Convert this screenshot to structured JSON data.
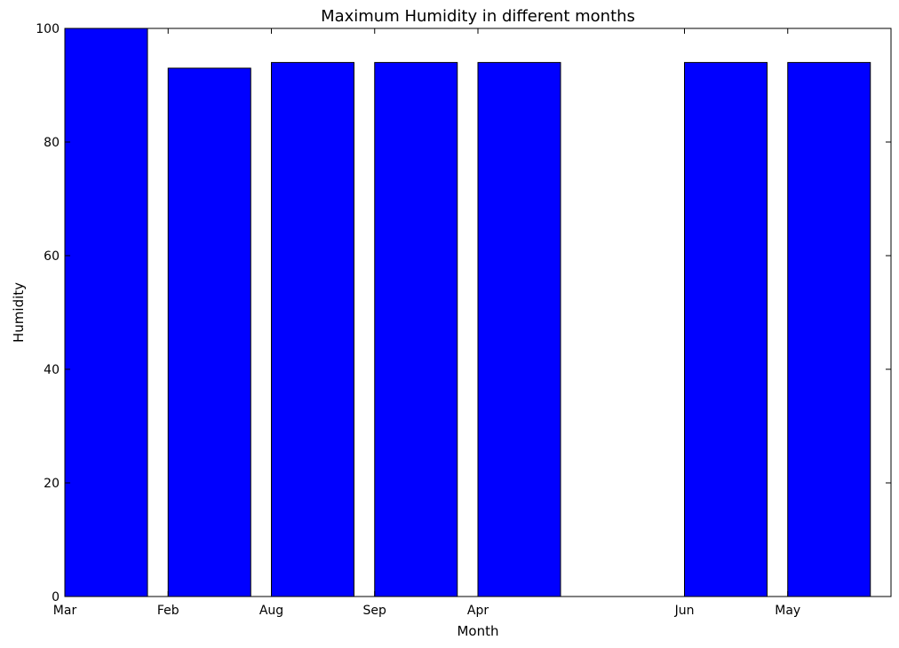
{
  "chart_data": {
    "type": "bar",
    "title": "Maximum Humidity in different months",
    "xlabel": "Month",
    "ylabel": "Humidity",
    "ylim": [
      0,
      100
    ],
    "yticks": [
      0,
      20,
      40,
      60,
      80,
      100
    ],
    "xlim": [
      0,
      8
    ],
    "categories": [
      "Mar",
      "Feb",
      "Aug",
      "Sep",
      "Apr",
      "Jun",
      "May"
    ],
    "x": [
      0,
      1,
      2,
      3,
      4,
      6,
      7
    ],
    "values": [
      100,
      93,
      94,
      94,
      94,
      94,
      94
    ],
    "bar_width": 0.8,
    "grid": false,
    "colors": {
      "bar_fill": "#0000ff",
      "bar_edge": "#000000",
      "axis": "#000000"
    }
  }
}
